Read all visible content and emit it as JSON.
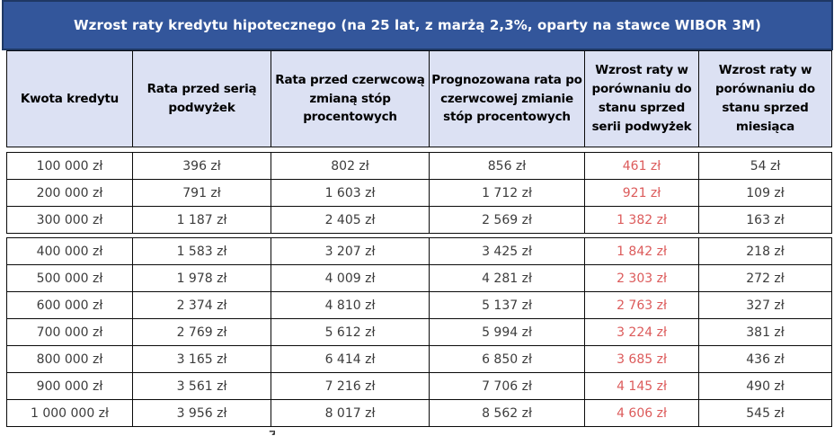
{
  "title": {
    "text": "Wzrost raty kredytu hipotecznego (na 25 lat, z marżą 2,3%, oparty na stawce WIBOR 3M)"
  },
  "colors": {
    "title_bg": "#33569B",
    "title_border": "#1F3864",
    "header_bg": "#DCE1F3",
    "grid": "#0A0A0A",
    "body_text": "#3C3C3C",
    "increase_red": "#DC5B5B"
  },
  "cropped_caption_hint": "Ź",
  "chart_data": {
    "type": "table",
    "title": "Wzrost raty kredytu hipotecznego (na 25 lat, z marżą 2,3%, oparty na stawce WIBOR 3M)",
    "columns": [
      "Kwota kredytu",
      "Rata przed serią podwyżek",
      "Rata przed czerwcową zmianą stóp procentowych",
      "Prognozowana rata po czerwcowej zmianie stóp procentowych",
      "Wzrost raty w porównaniu do stanu sprzed serii podwyżek",
      "Wzrost raty w porównaniu do stanu sprzed miesiąca"
    ],
    "rows": [
      [
        "100 000 zł",
        "396 zł",
        "802 zł",
        "856 zł",
        "461 zł",
        "54 zł"
      ],
      [
        "200 000 zł",
        "791 zł",
        "1 603 zł",
        "1 712 zł",
        "921 zł",
        "109 zł"
      ],
      [
        "300 000 zł",
        "1 187 zł",
        "2 405 zł",
        "2 569 zł",
        "1 382 zł",
        "163 zł"
      ],
      [
        "400 000 zł",
        "1 583 zł",
        "3 207 zł",
        "3 425 zł",
        "1 842 zł",
        "218 zł"
      ],
      [
        "500 000 zł",
        "1 978 zł",
        "4 009 zł",
        "4 281 zł",
        "2 303 zł",
        "272 zł"
      ],
      [
        "600 000 zł",
        "2 374 zł",
        "4 810 zł",
        "5 137 zł",
        "2 763 zł",
        "327 zł"
      ],
      [
        "700 000 zł",
        "2 769 zł",
        "5 612 zł",
        "5 994 zł",
        "3 224 zł",
        "381 zł"
      ],
      [
        "800 000 zł",
        "3 165 zł",
        "6 414 zł",
        "6 850 zł",
        "3 685 zł",
        "436 zł"
      ],
      [
        "900 000 zł",
        "3 561 zł",
        "7 216 zł",
        "7 706 zł",
        "4 145 zł",
        "490 zł"
      ],
      [
        "1 000 000 zł",
        "3 956 zł",
        "8 017 zł",
        "8 562 zł",
        "4 606 zł",
        "545 zł"
      ]
    ],
    "red_column_index": 4,
    "notes": "values in column index 4 rendered in red; table split by white seams after header and after row 3 (stitched screenshot)"
  }
}
